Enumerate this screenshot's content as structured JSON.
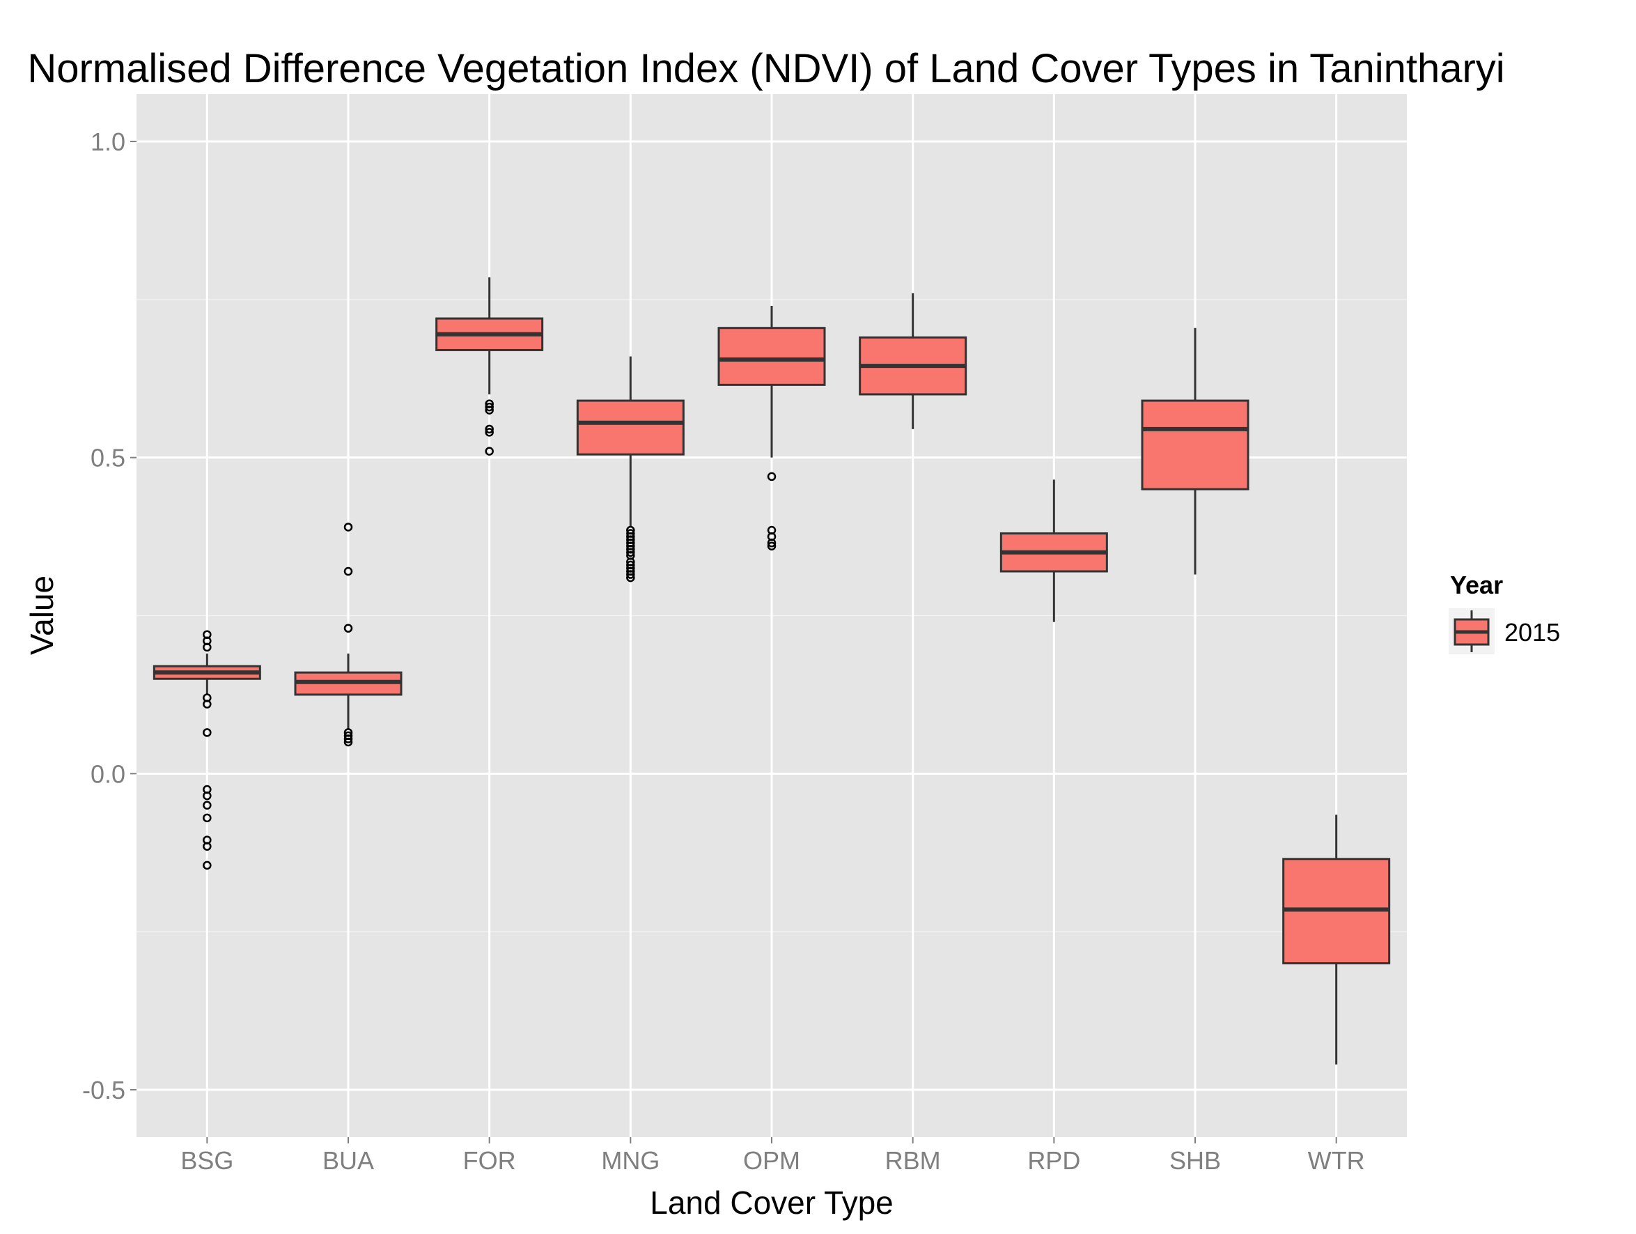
{
  "chart_data": {
    "type": "box",
    "title": "Normalised Difference Vegetation Index (NDVI) of Land Cover Types in Tanintharyi",
    "xlabel": "Land Cover Type",
    "ylabel": "Value",
    "ylim": [
      -0.575,
      1.075
    ],
    "yticks": [
      -0.5,
      0.0,
      0.5,
      1.0
    ],
    "ytick_labels": [
      "-0.5",
      "0.0",
      "0.5",
      "1.0"
    ],
    "grid": true,
    "legend": {
      "title": "Year",
      "position": "right",
      "entries": [
        "2015"
      ]
    },
    "colors": {
      "fill": "#F8766D",
      "panel": "#E5E5E5",
      "grid": "#FFFFFF",
      "stroke": "#333333"
    },
    "categories": [
      "BSG",
      "BUA",
      "FOR",
      "MNG",
      "OPM",
      "RBM",
      "RPD",
      "SHB",
      "WTR"
    ],
    "series": [
      {
        "name": "2015",
        "boxes": [
          {
            "category": "BSG",
            "whisker_low": 0.125,
            "q1": 0.15,
            "median": 0.16,
            "q3": 0.17,
            "whisker_high": 0.19,
            "outliers": [
              0.22,
              0.21,
              0.2,
              0.12,
              0.11,
              0.065,
              -0.025,
              -0.035,
              -0.05,
              -0.07,
              -0.105,
              -0.115,
              -0.145
            ]
          },
          {
            "category": "BUA",
            "whisker_low": 0.07,
            "q1": 0.125,
            "median": 0.145,
            "q3": 0.16,
            "whisker_high": 0.19,
            "outliers": [
              0.39,
              0.32,
              0.23,
              0.065,
              0.06,
              0.055,
              0.05
            ]
          },
          {
            "category": "FOR",
            "whisker_low": 0.6,
            "q1": 0.67,
            "median": 0.695,
            "q3": 0.72,
            "whisker_high": 0.785,
            "outliers": [
              0.585,
              0.58,
              0.575,
              0.545,
              0.54,
              0.51
            ]
          },
          {
            "category": "MNG",
            "whisker_low": 0.39,
            "q1": 0.505,
            "median": 0.555,
            "q3": 0.59,
            "whisker_high": 0.66,
            "outliers": [
              0.385,
              0.38,
              0.375,
              0.37,
              0.365,
              0.36,
              0.355,
              0.35,
              0.345,
              0.335,
              0.33,
              0.325,
              0.32,
              0.315,
              0.31
            ]
          },
          {
            "category": "OPM",
            "whisker_low": 0.5,
            "q1": 0.615,
            "median": 0.655,
            "q3": 0.705,
            "whisker_high": 0.74,
            "outliers": [
              0.47,
              0.385,
              0.375,
              0.365,
              0.36
            ]
          },
          {
            "category": "RBM",
            "whisker_low": 0.545,
            "q1": 0.6,
            "median": 0.645,
            "q3": 0.69,
            "whisker_high": 0.76,
            "outliers": []
          },
          {
            "category": "RPD",
            "whisker_low": 0.24,
            "q1": 0.32,
            "median": 0.35,
            "q3": 0.38,
            "whisker_high": 0.465,
            "outliers": []
          },
          {
            "category": "SHB",
            "whisker_low": 0.315,
            "q1": 0.45,
            "median": 0.545,
            "q3": 0.59,
            "whisker_high": 0.705,
            "outliers": []
          },
          {
            "category": "WTR",
            "whisker_low": -0.46,
            "q1": -0.3,
            "median": -0.215,
            "q3": -0.135,
            "whisker_high": -0.065,
            "outliers": []
          }
        ]
      }
    ]
  }
}
